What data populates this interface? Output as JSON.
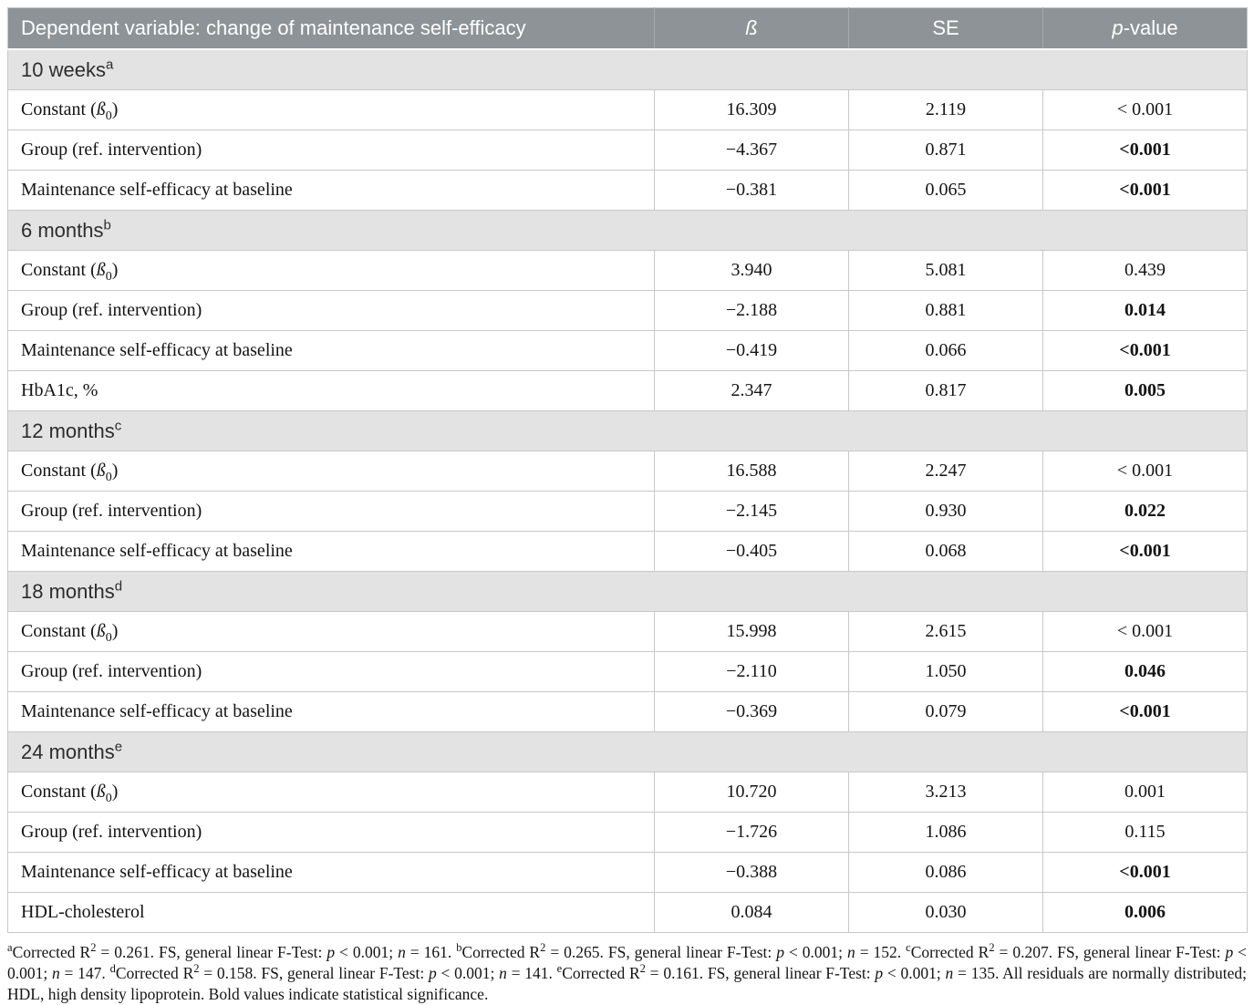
{
  "colors": {
    "header_bg": "#8d9396",
    "header_text": "#ffffff",
    "section_bg": "#e3e3e3",
    "border": "#c8c8c8",
    "body_text": "#141414"
  },
  "table": {
    "columns": [
      {
        "label": "Dependent variable: change of maintenance self-efficacy"
      },
      {
        "label": "*ß*"
      },
      {
        "label": "SE"
      },
      {
        "label": "*p*-value"
      }
    ],
    "sections": [
      {
        "title": "10 weeks^{a}",
        "rows": [
          {
            "label": "Constant (*ß*_{0})",
            "beta": "16.309",
            "se": "2.119",
            "p": "< 0.001",
            "p_bold": false
          },
          {
            "label": "Group (ref. intervention)",
            "beta": "−4.367",
            "se": "0.871",
            "p": "<0.001",
            "p_bold": true
          },
          {
            "label": "Maintenance self-efficacy at baseline",
            "beta": "−0.381",
            "se": "0.065",
            "p": "<0.001",
            "p_bold": true
          }
        ]
      },
      {
        "title": "6 months^{b}",
        "rows": [
          {
            "label": "Constant (*ß*_{0})",
            "beta": "3.940",
            "se": "5.081",
            "p": "0.439",
            "p_bold": false
          },
          {
            "label": "Group (ref. intervention)",
            "beta": "−2.188",
            "se": "0.881",
            "p": "0.014",
            "p_bold": true
          },
          {
            "label": "Maintenance self-efficacy at baseline",
            "beta": "−0.419",
            "se": "0.066",
            "p": "<0.001",
            "p_bold": true
          },
          {
            "label": "HbA1c, %",
            "beta": "2.347",
            "se": "0.817",
            "p": "0.005",
            "p_bold": true
          }
        ]
      },
      {
        "title": "12 months^{c}",
        "rows": [
          {
            "label": "Constant (*ß*_{0})",
            "beta": "16.588",
            "se": "2.247",
            "p": "< 0.001",
            "p_bold": false
          },
          {
            "label": "Group (ref. intervention)",
            "beta": "−2.145",
            "se": "0.930",
            "p": "0.022",
            "p_bold": true
          },
          {
            "label": "Maintenance self-efficacy at baseline",
            "beta": "−0.405",
            "se": "0.068",
            "p": "<0.001",
            "p_bold": true
          }
        ]
      },
      {
        "title": "18 months^{d}",
        "rows": [
          {
            "label": "Constant (*ß*_{0})",
            "beta": "15.998",
            "se": "2.615",
            "p": "< 0.001",
            "p_bold": false
          },
          {
            "label": "Group (ref. intervention)",
            "beta": "−2.110",
            "se": "1.050",
            "p": "0.046",
            "p_bold": true
          },
          {
            "label": "Maintenance self-efficacy at baseline",
            "beta": "−0.369",
            "se": "0.079",
            "p": "<0.001",
            "p_bold": true
          }
        ]
      },
      {
        "title": "24 months^{e}",
        "rows": [
          {
            "label": "Constant (*ß*_{0})",
            "beta": "10.720",
            "se": "3.213",
            "p": "0.001",
            "p_bold": false
          },
          {
            "label": "Group (ref. intervention)",
            "beta": "−1.726",
            "se": "1.086",
            "p": "0.115",
            "p_bold": false
          },
          {
            "label": "Maintenance self-efficacy at baseline",
            "beta": "−0.388",
            "se": "0.086",
            "p": "<0.001",
            "p_bold": true
          },
          {
            "label": "HDL-cholesterol",
            "beta": "0.084",
            "se": "0.030",
            "p": "0.006",
            "p_bold": true
          }
        ]
      }
    ]
  },
  "footnote": "^{a}Corrected R^{2} = 0.261. FS, general linear F-Test: *p* < 0.001; *n* = 161. ^{b}Corrected R^{2} = 0.265. FS, general linear F-Test: *p* < 0.001; *n* = 152. ^{c}Corrected R^{2} = 0.207. FS, general linear F-Test: *p* < 0.001; *n* = 147. ^{d}Corrected R^{2} = 0.158. FS, general linear F-Test: *p* < 0.001; *n* = 141. ^{e}Corrected R^{2} = 0.161. FS, general linear F-Test: *p* < 0.001; *n* = 135. All residuals are normally distributed; HDL, high density lipoprotein. Bold values indicate statistical significance."
}
